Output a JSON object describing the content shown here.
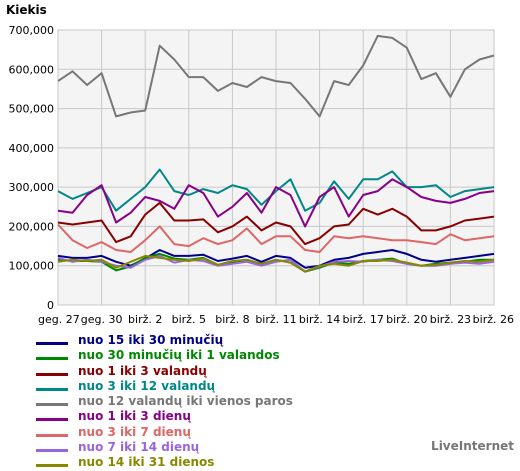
{
  "chart_data": {
    "type": "line",
    "title": "",
    "ylabel": "Kiekis",
    "xlabel": "",
    "ylim": [
      0,
      700000
    ],
    "yticks": [
      "0",
      "100,000",
      "200,000",
      "300,000",
      "400,000",
      "500,000",
      "600,000",
      "700,000"
    ],
    "ytick_values": [
      0,
      100000,
      200000,
      300000,
      400000,
      500000,
      600000,
      700000
    ],
    "x_tick_labels": [
      "geg. 27",
      "geg. 30",
      "birž. 2",
      "birž. 5",
      "birž. 8",
      "birž. 11",
      "birž. 14",
      "birž. 17",
      "birž. 20",
      "birž. 23",
      "birž. 26"
    ],
    "x_count": 31,
    "grid": true,
    "legend_position": "bottom",
    "colors": {
      "background": "#f4f4f4",
      "grid": "#c8c8c8"
    },
    "series": [
      {
        "name": "nuo 15 iki 30 minučių",
        "color": "#000088",
        "values": [
          125000,
          120000,
          120000,
          125000,
          110000,
          100000,
          118000,
          140000,
          125000,
          125000,
          128000,
          112000,
          118000,
          125000,
          110000,
          125000,
          120000,
          95000,
          100000,
          115000,
          120000,
          130000,
          135000,
          140000,
          130000,
          115000,
          110000,
          115000,
          120000,
          125000,
          130000
        ]
      },
      {
        "name": "nuo 30 minučių iki 1 valandos",
        "color": "#008800",
        "values": [
          115000,
          112000,
          112000,
          110000,
          88000,
          98000,
          120000,
          130000,
          118000,
          115000,
          120000,
          102000,
          108000,
          115000,
          105000,
          115000,
          108000,
          85000,
          95000,
          108000,
          105000,
          112000,
          115000,
          118000,
          105000,
          100000,
          105000,
          108000,
          110000,
          115000,
          115000
        ]
      },
      {
        "name": "nuo 1 iki 3 valandų",
        "color": "#880000",
        "values": [
          210000,
          205000,
          210000,
          215000,
          160000,
          175000,
          230000,
          260000,
          215000,
          215000,
          218000,
          185000,
          200000,
          225000,
          190000,
          210000,
          200000,
          155000,
          170000,
          200000,
          205000,
          245000,
          230000,
          245000,
          225000,
          190000,
          190000,
          200000,
          215000,
          220000,
          225000
        ]
      },
      {
        "name": "nuo 3 iki 12 valandų",
        "color": "#008888",
        "values": [
          290000,
          270000,
          285000,
          300000,
          240000,
          270000,
          300000,
          345000,
          290000,
          280000,
          295000,
          285000,
          305000,
          295000,
          255000,
          290000,
          320000,
          240000,
          260000,
          315000,
          270000,
          320000,
          320000,
          340000,
          300000,
          300000,
          305000,
          275000,
          290000,
          295000,
          300000
        ]
      },
      {
        "name": "nuo 12 valandų iki vienos paros",
        "color": "#777777",
        "values": [
          570000,
          595000,
          560000,
          590000,
          480000,
          490000,
          495000,
          660000,
          625000,
          580000,
          580000,
          545000,
          565000,
          555000,
          580000,
          570000,
          565000,
          525000,
          480000,
          570000,
          560000,
          610000,
          685000,
          680000,
          655000,
          575000,
          590000,
          530000,
          600000,
          625000,
          635000
        ]
      },
      {
        "name": "nuo 1 iki 3 dienų",
        "color": "#880088",
        "values": [
          240000,
          235000,
          280000,
          305000,
          210000,
          235000,
          275000,
          265000,
          245000,
          305000,
          285000,
          225000,
          250000,
          285000,
          235000,
          300000,
          280000,
          200000,
          275000,
          300000,
          225000,
          280000,
          290000,
          320000,
          300000,
          275000,
          265000,
          260000,
          270000,
          285000,
          290000
        ]
      },
      {
        "name": "nuo 3 iki 7 dienų",
        "color": "#dd6666",
        "values": [
          205000,
          165000,
          145000,
          160000,
          140000,
          135000,
          165000,
          200000,
          155000,
          150000,
          170000,
          155000,
          165000,
          195000,
          155000,
          175000,
          175000,
          140000,
          135000,
          175000,
          170000,
          175000,
          170000,
          165000,
          165000,
          160000,
          155000,
          180000,
          165000,
          170000,
          175000
        ]
      },
      {
        "name": "nuo 7 iki 14 dienų",
        "color": "#9966dd",
        "values": [
          120000,
          110000,
          115000,
          110000,
          100000,
          95000,
          115000,
          125000,
          108000,
          115000,
          112000,
          100000,
          105000,
          110000,
          100000,
          110000,
          115000,
          85000,
          98000,
          110000,
          112000,
          110000,
          115000,
          112000,
          105000,
          100000,
          100000,
          105000,
          108000,
          105000,
          110000
        ]
      },
      {
        "name": "nuo 14 iki 31 dienos",
        "color": "#888800",
        "values": [
          110000,
          115000,
          112000,
          115000,
          95000,
          110000,
          125000,
          120000,
          115000,
          112000,
          118000,
          102000,
          112000,
          115000,
          105000,
          115000,
          108000,
          85000,
          100000,
          105000,
          100000,
          112000,
          112000,
          115000,
          108000,
          100000,
          102000,
          108000,
          112000,
          110000,
          115000
        ]
      }
    ]
  },
  "brand": "LiveInternet"
}
